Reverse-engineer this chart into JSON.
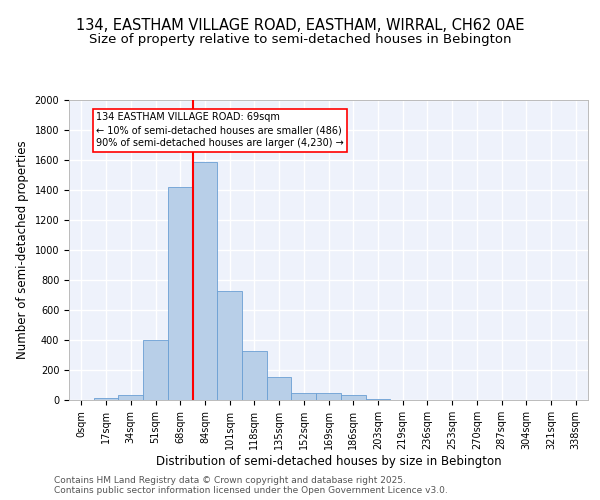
{
  "title_line1": "134, EASTHAM VILLAGE ROAD, EASTHAM, WIRRAL, CH62 0AE",
  "title_line2": "Size of property relative to semi-detached houses in Bebington",
  "xlabel": "Distribution of semi-detached houses by size in Bebington",
  "ylabel": "Number of semi-detached properties",
  "bar_labels": [
    "0sqm",
    "17sqm",
    "34sqm",
    "51sqm",
    "68sqm",
    "84sqm",
    "101sqm",
    "118sqm",
    "135sqm",
    "152sqm",
    "169sqm",
    "186sqm",
    "203sqm",
    "219sqm",
    "236sqm",
    "253sqm",
    "270sqm",
    "287sqm",
    "304sqm",
    "321sqm",
    "338sqm"
  ],
  "bar_values": [
    0,
    12,
    35,
    400,
    1420,
    1590,
    725,
    330,
    155,
    50,
    45,
    35,
    5,
    0,
    0,
    0,
    0,
    0,
    0,
    0,
    0
  ],
  "bar_color": "#b8cfe8",
  "bar_edge_color": "#6a9fd4",
  "background_color": "#eef2fb",
  "grid_color": "#ffffff",
  "vline_color": "red",
  "annotation_text": "134 EASTHAM VILLAGE ROAD: 69sqm\n← 10% of semi-detached houses are smaller (486)\n90% of semi-detached houses are larger (4,230) →",
  "annotation_box_color": "white",
  "annotation_box_edge": "red",
  "ylim": [
    0,
    2000
  ],
  "yticks": [
    0,
    200,
    400,
    600,
    800,
    1000,
    1200,
    1400,
    1600,
    1800,
    2000
  ],
  "footer_text": "Contains HM Land Registry data © Crown copyright and database right 2025.\nContains public sector information licensed under the Open Government Licence v3.0.",
  "title_fontsize": 10.5,
  "subtitle_fontsize": 9.5,
  "axis_label_fontsize": 8.5,
  "tick_fontsize": 7,
  "footer_fontsize": 6.5,
  "vline_pos": 4.5
}
